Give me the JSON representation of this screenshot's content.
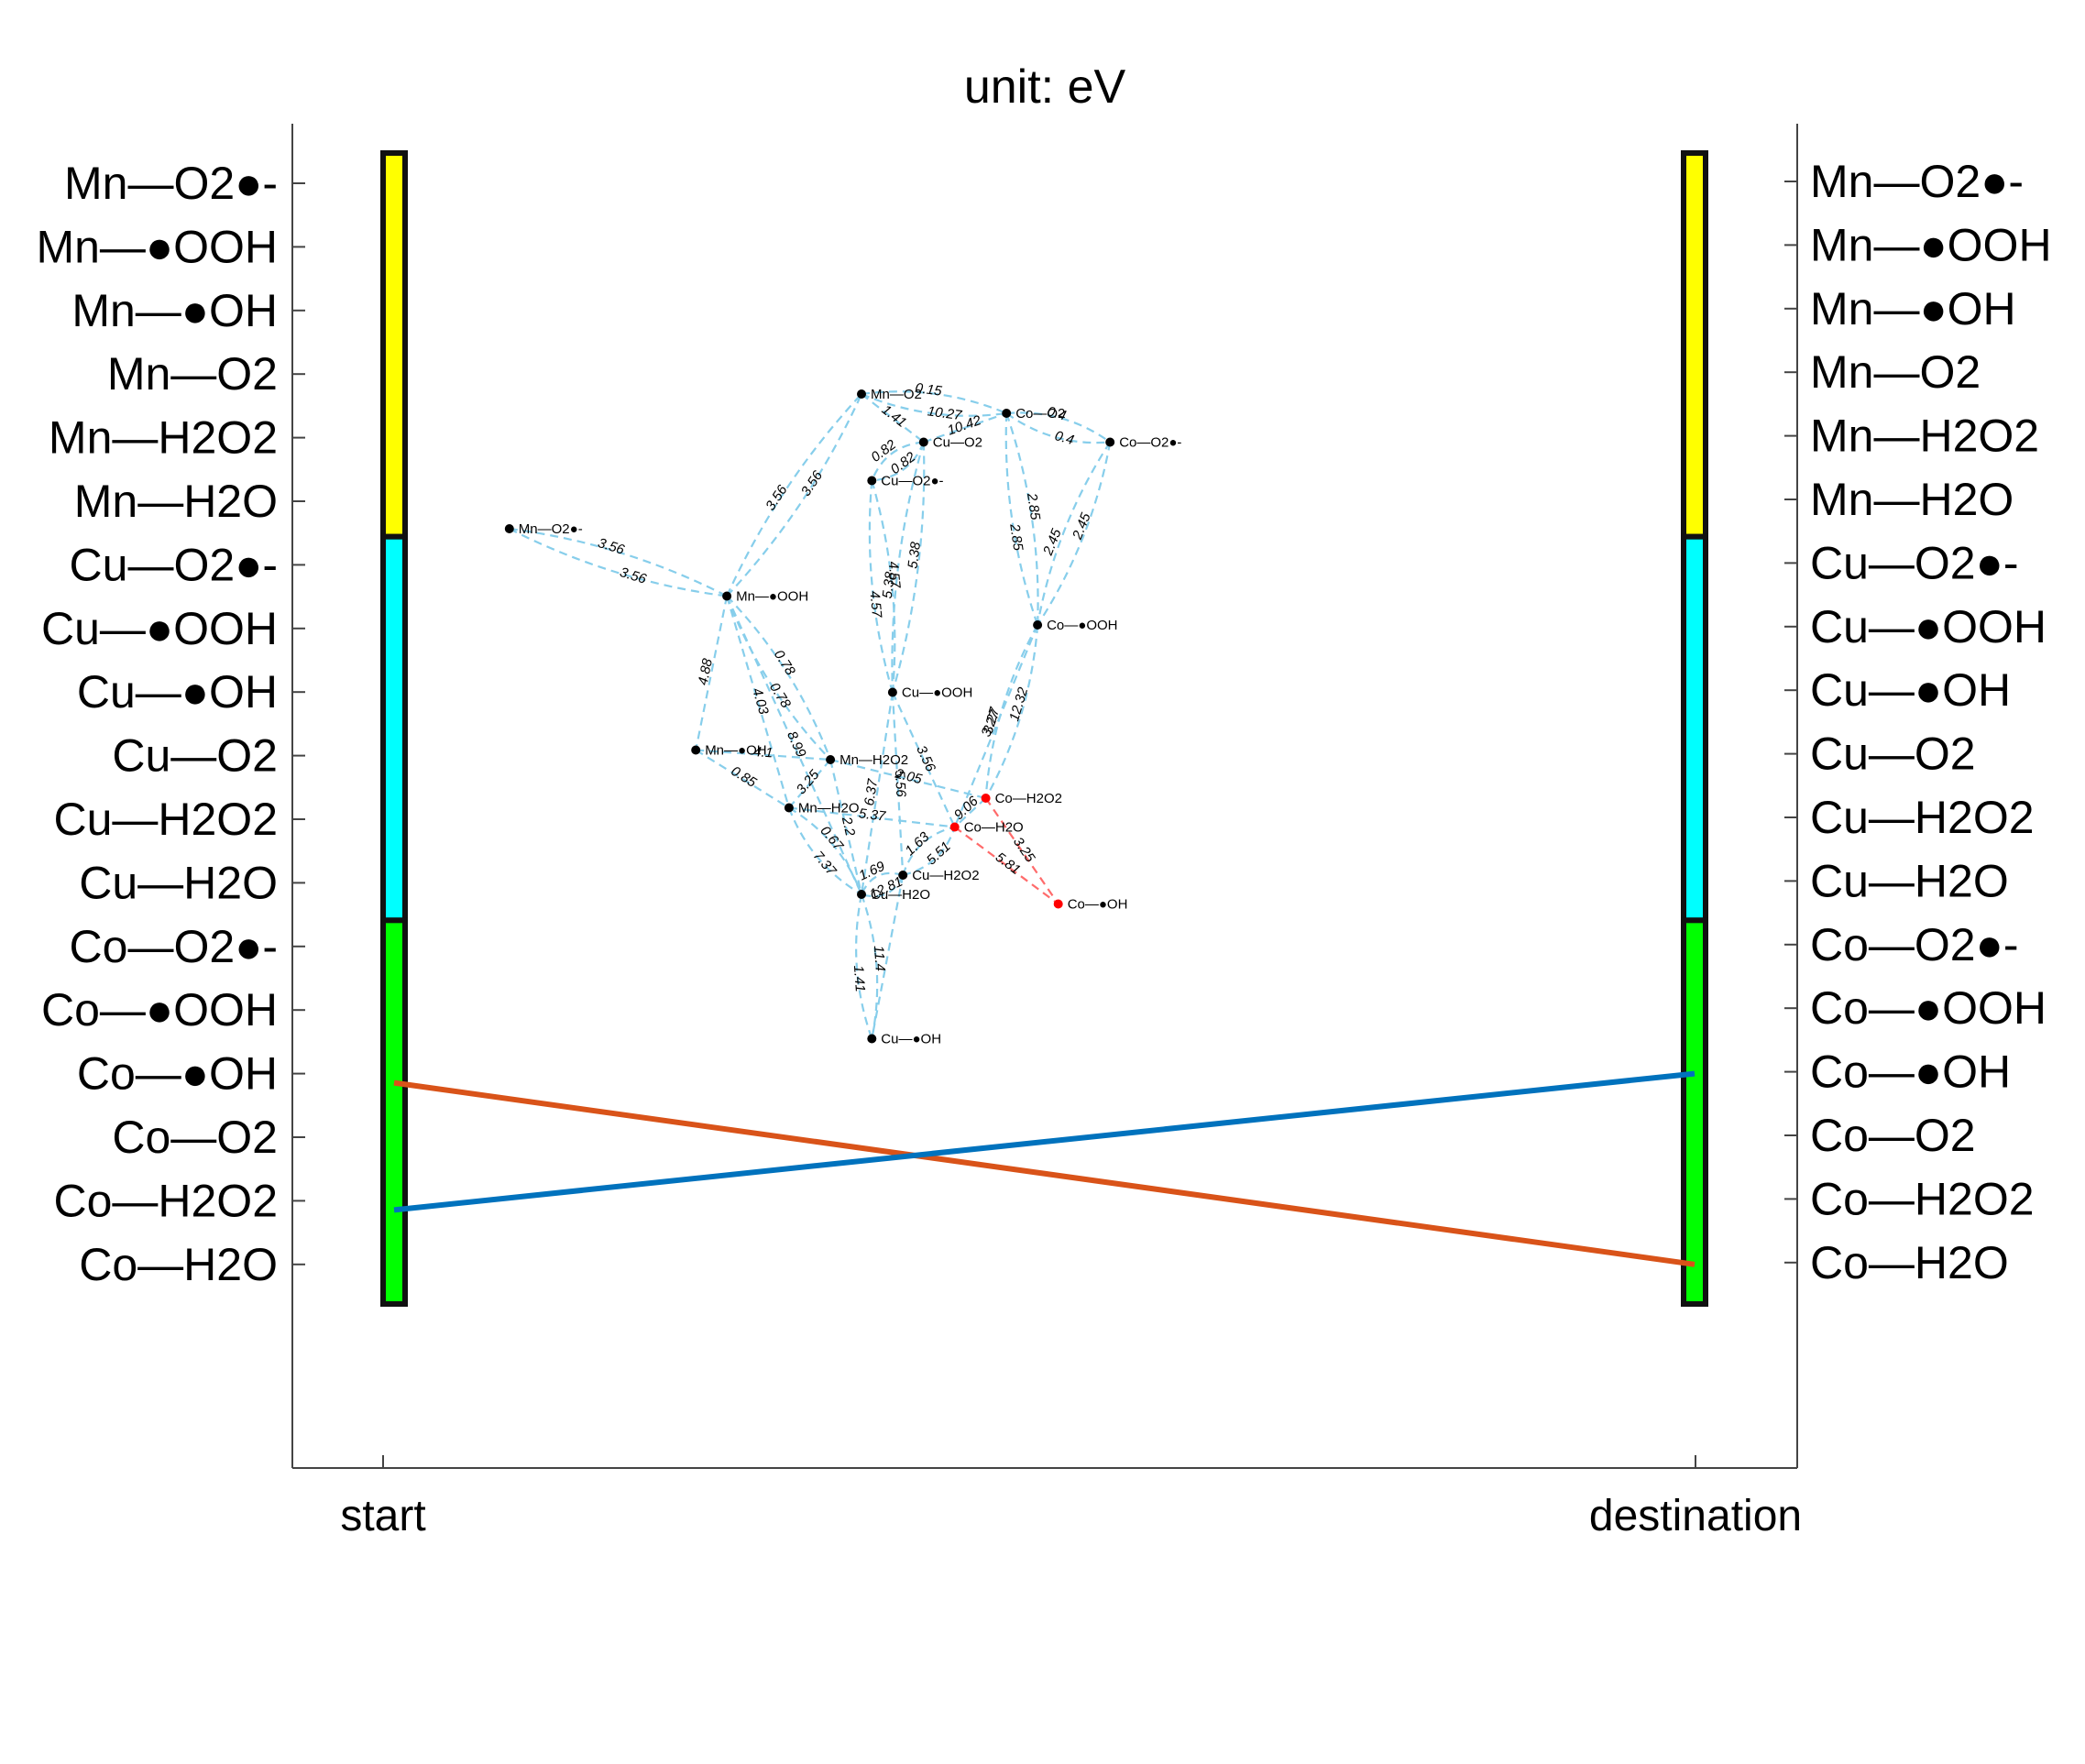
{
  "title": "unit: eV",
  "left_labels": [
    "Mn—O2●-",
    "Mn—●OOH",
    "Mn—●OH",
    "Mn—O2",
    "Mn—H2O2",
    "Mn—H2O",
    "Cu—O2●-",
    "Cu—●OOH",
    "Cu—●OH",
    "Cu—O2",
    "Cu—H2O2",
    "Cu—H2O",
    "Co—O2●-",
    "Co—●OOH",
    "Co—●OH",
    "Co—O2",
    "Co—H2O2",
    "Co—H2O"
  ],
  "right_labels": [
    "Mn—O2●-",
    "Mn—●OOH",
    "Mn—●OH",
    "Mn—O2",
    "Mn—H2O2",
    "Mn—H2O",
    "Cu—O2●-",
    "Cu—●OOH",
    "Cu—●OH",
    "Cu—O2",
    "Cu—H2O2",
    "Cu—H2O",
    "Co—O2●-",
    "Co—●OOH",
    "Co—●OH",
    "Co—O2",
    "Co—H2O2",
    "Co—H2O"
  ],
  "x_ticks": [
    "start",
    "destination"
  ],
  "bar_groups": [
    {
      "group": "Mn",
      "color": "#ffff00"
    },
    {
      "group": "Cu",
      "color": "#00ffff"
    },
    {
      "group": "Co",
      "color": "#00ff00"
    }
  ],
  "lines": [
    {
      "from": "Co—●OH",
      "to": "Co—H2O",
      "color": "#d95319"
    },
    {
      "from": "Co—H2O2",
      "to": "Co—●OH",
      "color": "#0072bd"
    }
  ],
  "graph": {
    "edge_color": "#87ceeb",
    "highlight_color": "#ff6b6b",
    "nodes": [
      {
        "id": "mn_o2r",
        "label": "Mn—O2●-",
        "pos": [
          6,
          16
        ],
        "highlight": false
      },
      {
        "id": "mn_o2",
        "label": "Mn—O2",
        "pos": [
          40,
          2
        ],
        "highlight": false
      },
      {
        "id": "mn_ooh",
        "label": "Mn—●OOH",
        "pos": [
          27,
          23
        ],
        "highlight": false
      },
      {
        "id": "mn_oh",
        "label": "Mn—●OH",
        "pos": [
          24,
          39
        ],
        "highlight": false
      },
      {
        "id": "mn_h2o2",
        "label": "Mn—H2O2",
        "pos": [
          37,
          40
        ],
        "highlight": false
      },
      {
        "id": "mn_h2o",
        "label": "Mn—H2O",
        "pos": [
          33,
          45
        ],
        "highlight": false
      },
      {
        "id": "cu_o2",
        "label": "Cu—O2",
        "pos": [
          46,
          7
        ],
        "highlight": false
      },
      {
        "id": "cu_o2r",
        "label": "Cu—O2●-",
        "pos": [
          41,
          11
        ],
        "highlight": false
      },
      {
        "id": "cu_ooh",
        "label": "Cu—●OOH",
        "pos": [
          43,
          33
        ],
        "highlight": false
      },
      {
        "id": "cu_h2o2",
        "label": "Cu—H2O2",
        "pos": [
          44,
          52
        ],
        "highlight": false
      },
      {
        "id": "cu_h2o",
        "label": "Cu—H2O",
        "pos": [
          40,
          54
        ],
        "highlight": false
      },
      {
        "id": "cu_oh",
        "label": "Cu—●OH",
        "pos": [
          41,
          69
        ],
        "highlight": false
      },
      {
        "id": "co_o2",
        "label": "Co—O2",
        "pos": [
          54,
          4
        ],
        "highlight": false
      },
      {
        "id": "co_o2r",
        "label": "Co—O2●-",
        "pos": [
          64,
          7
        ],
        "highlight": false
      },
      {
        "id": "co_ooh",
        "label": "Co—●OOH",
        "pos": [
          57,
          26
        ],
        "highlight": false
      },
      {
        "id": "co_h2o2",
        "label": "Co—H2O2",
        "pos": [
          52,
          44
        ],
        "highlight": true
      },
      {
        "id": "co_h2o",
        "label": "Co—H2O",
        "pos": [
          49,
          47
        ],
        "highlight": true
      },
      {
        "id": "co_oh",
        "label": "Co—●OH",
        "pos": [
          59,
          55
        ],
        "highlight": true
      }
    ],
    "edges": [
      {
        "a": "mn_o2r",
        "b": "mn_ooh",
        "w": [
          "3.56",
          "3.56"
        ]
      },
      {
        "a": "mn_ooh",
        "b": "mn_o2",
        "w": [
          "3.56",
          "3.56"
        ]
      },
      {
        "a": "mn_o2",
        "b": "co_o2",
        "w": [
          "0.15",
          "10.27"
        ]
      },
      {
        "a": "mn_o2",
        "b": "cu_o2",
        "w": [
          "1.41"
        ]
      },
      {
        "a": "cu_o2",
        "b": "co_o2",
        "w": [
          "10.42"
        ]
      },
      {
        "a": "co_o2",
        "b": "co_o2r",
        "w": [
          "0.4",
          "0.4"
        ]
      },
      {
        "a": "cu_o2",
        "b": "cu_o2r",
        "w": [
          "0.82",
          "0.82"
        ]
      },
      {
        "a": "cu_o2r",
        "b": "cu_ooh",
        "w": [
          "4.57",
          "4.57"
        ]
      },
      {
        "a": "cu_o2",
        "b": "cu_ooh",
        "w": [
          "5.38",
          "5.38"
        ]
      },
      {
        "a": "co_o2",
        "b": "co_ooh",
        "w": [
          "2.85",
          "2.85"
        ]
      },
      {
        "a": "co_o2r",
        "b": "co_ooh",
        "w": [
          "2.45",
          "2.45"
        ]
      },
      {
        "a": "mn_ooh",
        "b": "mn_oh",
        "w": [
          "4.88"
        ]
      },
      {
        "a": "mn_ooh",
        "b": "mn_h2o2",
        "w": [
          "0.78",
          "0.78"
        ]
      },
      {
        "a": "mn_ooh",
        "b": "mn_h2o",
        "w": [
          "4.03"
        ]
      },
      {
        "a": "mn_oh",
        "b": "mn_h2o2",
        "w": [
          "4.1"
        ]
      },
      {
        "a": "mn_oh",
        "b": "mn_h2o",
        "w": [
          "0.85"
        ]
      },
      {
        "a": "mn_h2o",
        "b": "mn_h2o2",
        "w": [
          "3.25"
        ]
      },
      {
        "a": "mn_h2o2",
        "b": "co_h2o2",
        "w": [
          "2.05"
        ]
      },
      {
        "a": "mn_h2o",
        "b": "co_h2o",
        "w": [
          "5.37"
        ]
      },
      {
        "a": "mn_h2o",
        "b": "cu_h2o",
        "w": [
          "0.67",
          "7.37"
        ]
      },
      {
        "a": "mn_ooh",
        "b": "cu_h2o",
        "w": [
          "8.99"
        ]
      },
      {
        "a": "cu_ooh",
        "b": "cu_h2o2",
        "w": [
          "5.56"
        ]
      },
      {
        "a": "cu_ooh",
        "b": "cu_h2o",
        "w": [
          "6.37"
        ]
      },
      {
        "a": "cu_ooh",
        "b": "co_h2o",
        "w": [
          "3.56"
        ]
      },
      {
        "a": "mn_h2o2",
        "b": "cu_h2o",
        "w": [
          "2.2"
        ]
      },
      {
        "a": "cu_h2o2",
        "b": "co_h2o",
        "w": [
          "1.63",
          "5.51"
        ]
      },
      {
        "a": "cu_h2o2",
        "b": "cu_h2o",
        "w": [
          "12.81",
          "1.69"
        ]
      },
      {
        "a": "co_h2o2",
        "b": "co_h2o",
        "w": [
          "9.06"
        ]
      },
      {
        "a": "co_ooh",
        "b": "co_h2o2",
        "w": [
          "12.32",
          "3.27"
        ]
      },
      {
        "a": "co_ooh",
        "b": "co_h2o",
        "w": [
          "3.27"
        ]
      },
      {
        "a": "cu_h2o",
        "b": "cu_oh",
        "w": [
          "11.4",
          "1.41"
        ]
      },
      {
        "a": "cu_h2o2",
        "b": "cu_oh",
        "w": []
      },
      {
        "a": "co_h2o2",
        "b": "co_oh",
        "w": [
          "3.25"
        ],
        "highlight": true
      },
      {
        "a": "co_h2o",
        "b": "co_oh",
        "w": [
          "5.81"
        ],
        "highlight": true
      }
    ]
  }
}
